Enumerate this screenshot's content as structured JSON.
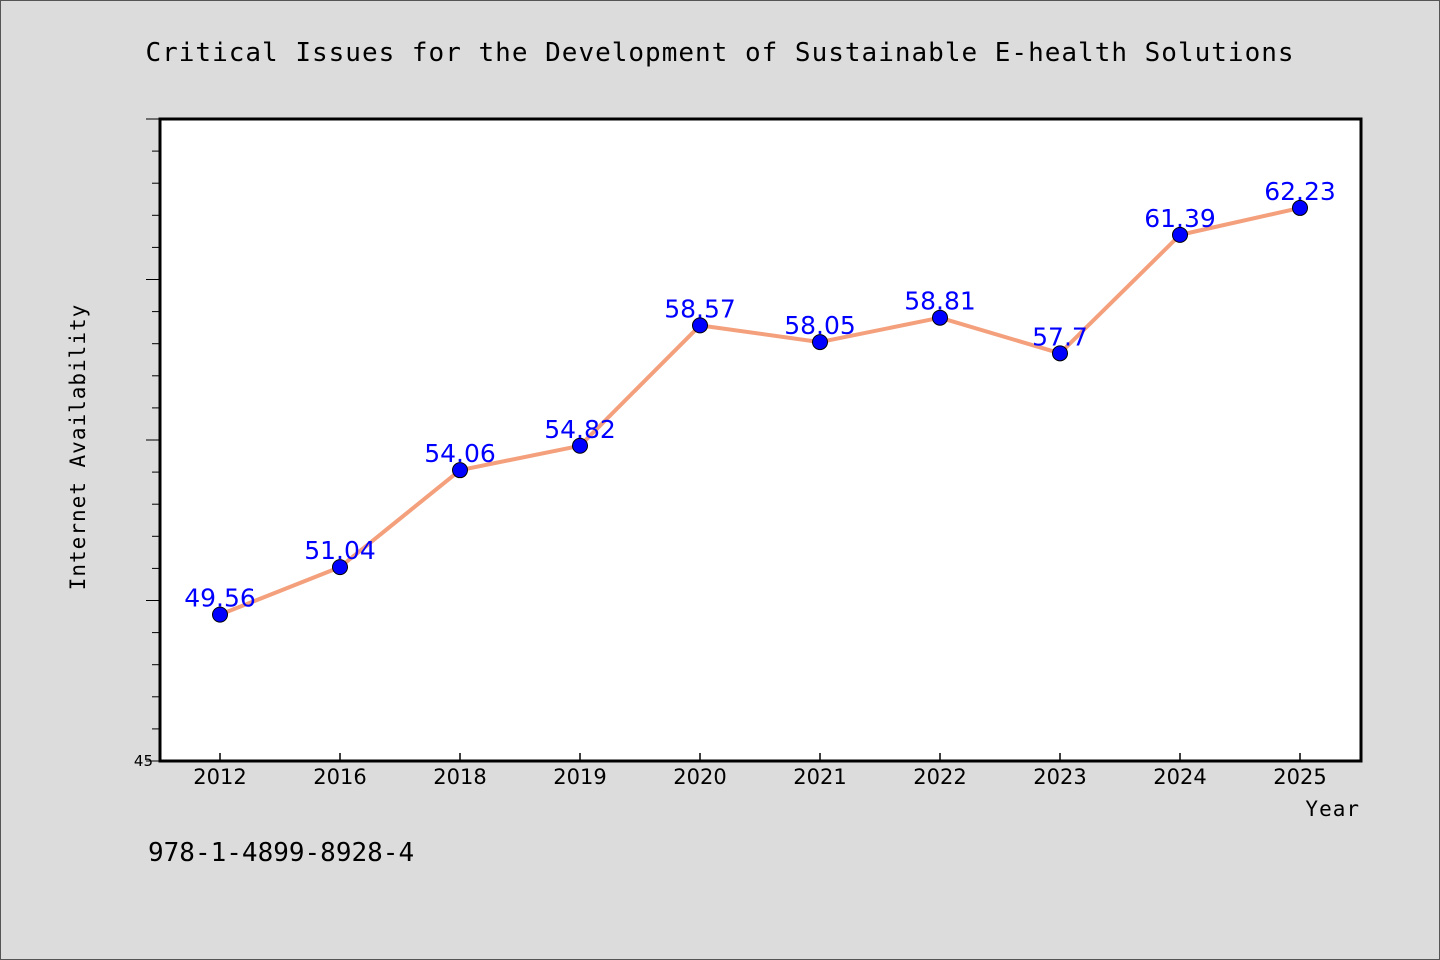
{
  "chart_data": {
    "type": "line",
    "title": "Critical Issues for the Development of Sustainable E-health Solutions",
    "xlabel": "Year",
    "ylabel": "Internet Availability",
    "categories": [
      "2012",
      "2016",
      "2018",
      "2019",
      "2020",
      "2021",
      "2022",
      "2023",
      "2024",
      "2025"
    ],
    "series": [
      {
        "values": [
          49.56,
          51.04,
          54.06,
          54.82,
          58.57,
          58.05,
          58.81,
          57.7,
          61.39,
          62.23
        ],
        "labels": [
          "49.56",
          "51.04",
          "54.06",
          "54.82",
          "58.57",
          "58.05",
          "58.81",
          "57.7",
          "61.39",
          "62.23"
        ],
        "line_color": "#f4a07c",
        "marker_color": "#0000ff"
      }
    ],
    "ylim": [
      45,
      65
    ],
    "yticks_labeled": [
      "45"
    ],
    "grid": false,
    "legend": "none"
  },
  "footer": {
    "isbn": "978-1-4899-8928-4"
  },
  "colors": {
    "background": "#dcdcdc",
    "plot_background": "#ffffff",
    "line": "#f4a07c",
    "marker": "#0000ff",
    "data_label": "#0000ff"
  }
}
